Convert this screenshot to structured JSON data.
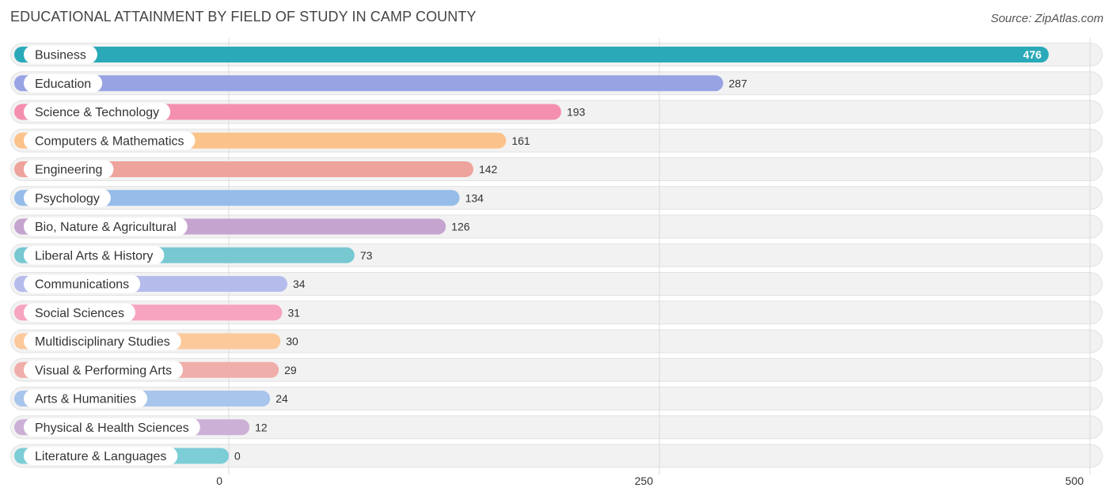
{
  "header": {
    "title": "EDUCATIONAL ATTAINMENT BY FIELD OF STUDY IN CAMP COUNTY",
    "source": "Source: ZipAtlas.com"
  },
  "chart_data": {
    "type": "bar",
    "orientation": "horizontal",
    "title": "EDUCATIONAL ATTAINMENT BY FIELD OF STUDY IN CAMP COUNTY",
    "xlabel": "",
    "ylabel": "",
    "xlim": [
      0,
      500
    ],
    "ticks": [
      0,
      250,
      500
    ],
    "grid": true,
    "categories": [
      "Business",
      "Education",
      "Science & Technology",
      "Computers & Mathematics",
      "Engineering",
      "Psychology",
      "Bio, Nature & Agricultural",
      "Liberal Arts & History",
      "Communications",
      "Social Sciences",
      "Multidisciplinary Studies",
      "Visual & Performing Arts",
      "Arts & Humanities",
      "Physical & Health Sciences",
      "Literature & Languages"
    ],
    "values": [
      476,
      287,
      193,
      161,
      142,
      134,
      126,
      73,
      34,
      31,
      30,
      29,
      24,
      12,
      0
    ],
    "colors": [
      "#2aa9b8",
      "#97a3e3",
      "#f58fb0",
      "#fbc28a",
      "#eea39c",
      "#96bde9",
      "#c5a4cf",
      "#77c8d1",
      "#b5bcec",
      "#f7a4c0",
      "#fbc99a",
      "#f0aeaa",
      "#a8c5ec",
      "#ccb0d6",
      "#7ccdd6"
    ]
  }
}
